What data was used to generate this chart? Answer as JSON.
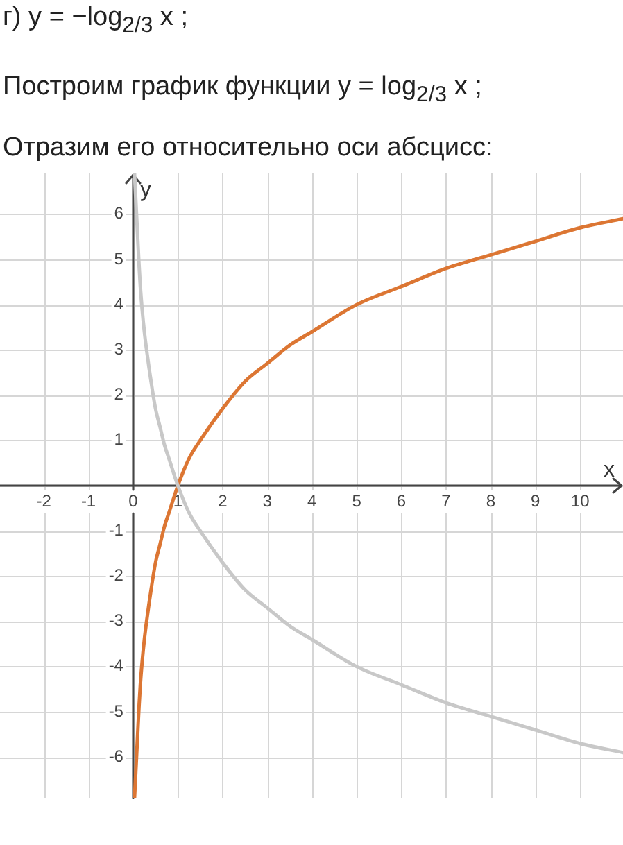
{
  "chart_data": {
    "type": "line",
    "title": "г) y = −log$_{2/3}$ x ;",
    "subtitle": "Построим график функции y = log$_{2/3}$ x ;",
    "annotations": [
      "Отразим его относительно оси абсцисс:"
    ],
    "xlabel": "x",
    "ylabel": "y",
    "xlim": [
      -2.98,
      10.96
    ],
    "ylim": [
      -6.9,
      6.9
    ],
    "xticks": [
      -2,
      -1,
      0,
      1,
      2,
      3,
      4,
      5,
      6,
      7,
      8,
      9,
      10
    ],
    "yticks": [
      -6,
      -5,
      -4,
      -3,
      -2,
      -1,
      {
        "value": 0,
        "label": null
      },
      1,
      2,
      3,
      4,
      5,
      6
    ],
    "grid": true,
    "legend": false,
    "marker": "none",
    "line_style": "solid",
    "series": [
      {
        "color": "#c8c8c8",
        "x": [
          0.03,
          0.06,
          0.08,
          0.1,
          0.13,
          0.16,
          0.2,
          0.25,
          0.3,
          0.4,
          0.5,
          0.6,
          0.7,
          0.8,
          1,
          1.25,
          1.5,
          2,
          2.5,
          3,
          3.5,
          4,
          5,
          6,
          7,
          8,
          9,
          10,
          10.96
        ],
        "values": [
          6.9,
          6.3,
          5.9,
          5.5,
          4.9,
          4.4,
          3.9,
          3.4,
          3.0,
          2.3,
          1.7,
          1.3,
          0.9,
          0.6,
          0,
          -0.6,
          -1,
          -1.7,
          -2.3,
          -2.7,
          -3.1,
          -3.4,
          -4,
          -4.4,
          -4.8,
          -5.1,
          -5.4,
          -5.7,
          -5.9
        ]
      },
      {
        "color": "#dc7633",
        "x": [
          0.03,
          0.06,
          0.08,
          0.1,
          0.13,
          0.16,
          0.2,
          0.25,
          0.3,
          0.4,
          0.5,
          0.6,
          0.7,
          0.8,
          1,
          1.25,
          1.5,
          2,
          2.5,
          3,
          3.5,
          4,
          5,
          6,
          7,
          8,
          9,
          10,
          10.96
        ],
        "values": [
          -6.9,
          -6.3,
          -5.9,
          -5.5,
          -4.9,
          -4.4,
          -3.9,
          -3.4,
          -3.0,
          -2.3,
          -1.7,
          -1.3,
          -0.9,
          -0.6,
          0,
          0.6,
          1,
          1.7,
          2.3,
          2.7,
          3.1,
          3.4,
          4,
          4.4,
          4.8,
          5.1,
          5.4,
          5.7,
          5.9
        ]
      }
    ]
  }
}
